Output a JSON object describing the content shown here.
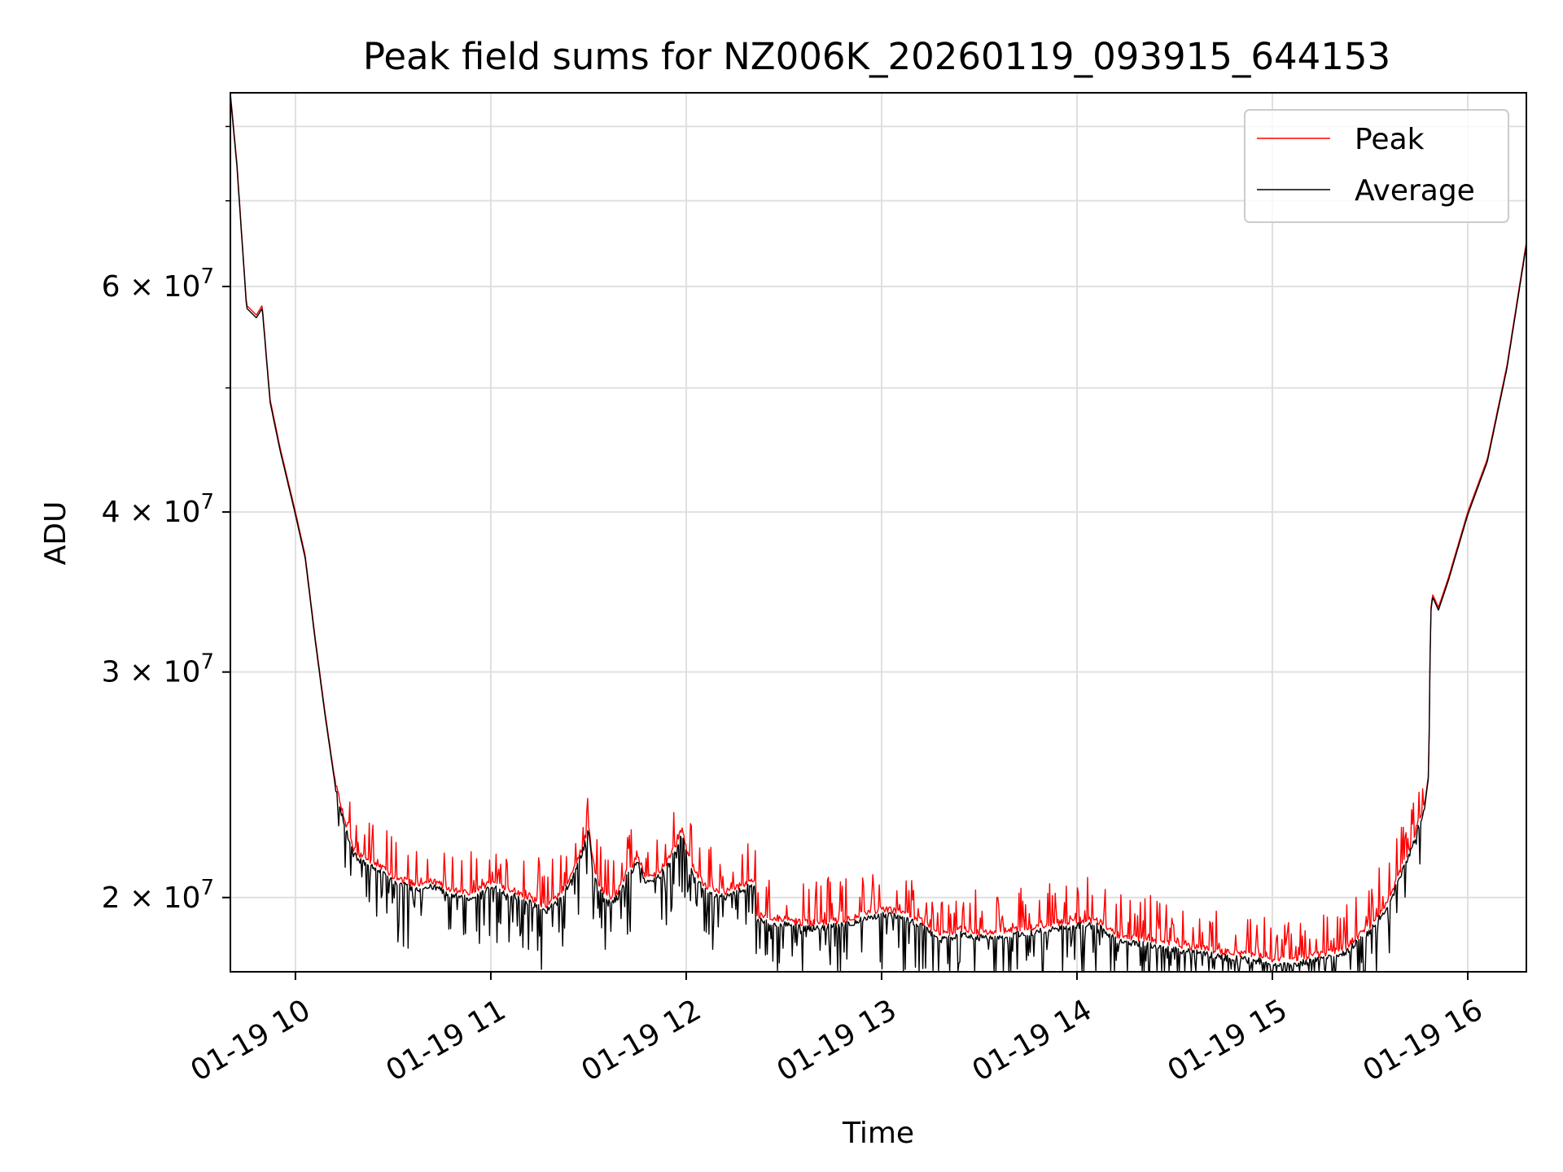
{
  "chart_data": {
    "type": "line",
    "title": "Peak field sums for NZ006K_20260119_093915_644153",
    "xlabel": "Time",
    "ylabel": "ADU",
    "yscale": "log",
    "xlim": [
      9.667,
      16.3
    ],
    "ylim": [
      17500000,
      85000000
    ],
    "grid": true,
    "legend_position": "top-right",
    "x_ticks": [
      {
        "value": 10,
        "label": "01-19 10"
      },
      {
        "value": 11,
        "label": "01-19 11"
      },
      {
        "value": 12,
        "label": "01-19 12"
      },
      {
        "value": 13,
        "label": "01-19 13"
      },
      {
        "value": 14,
        "label": "01-19 14"
      },
      {
        "value": 15,
        "label": "01-19 15"
      },
      {
        "value": 16,
        "label": "01-19 16"
      }
    ],
    "y_ticks": [
      {
        "value": 20000000,
        "mantissa": "2",
        "base": "10",
        "exp": "7"
      },
      {
        "value": 30000000,
        "mantissa": "3",
        "base": "10",
        "exp": "7"
      },
      {
        "value": 40000000,
        "mantissa": "4",
        "base": "10",
        "exp": "7"
      },
      {
        "value": 60000000,
        "mantissa": "6",
        "base": "10",
        "exp": "7"
      }
    ],
    "y_minor_ticks": [
      50000000,
      70000000,
      80000000
    ],
    "series": [
      {
        "name": "Peak",
        "color": "#ff0000"
      },
      {
        "name": "Average",
        "color": "#000000"
      }
    ],
    "trend": {
      "x": [
        9.667,
        9.7,
        9.75,
        9.8,
        9.83,
        9.87,
        9.92,
        10.0,
        10.05,
        10.1,
        10.15,
        10.2,
        10.25,
        10.3,
        10.35,
        10.4,
        10.5,
        10.6,
        10.7,
        10.8,
        10.9,
        11.0,
        11.1,
        11.2,
        11.28,
        11.35,
        11.4,
        11.45,
        11.48,
        11.5,
        11.52,
        11.55,
        11.6,
        11.65,
        11.7,
        11.75,
        11.8,
        11.85,
        11.9,
        11.95,
        11.98,
        12.0,
        12.05,
        12.1,
        12.2,
        12.3,
        12.35,
        12.36,
        12.45,
        12.6,
        12.8,
        13.0,
        13.1,
        13.2,
        13.3,
        13.4,
        13.5,
        13.7,
        13.9,
        14.0,
        14.1,
        14.15,
        14.2,
        14.4,
        14.6,
        14.8,
        14.95,
        15.0,
        15.05,
        15.2,
        15.35,
        15.5,
        15.6,
        15.7,
        15.78,
        15.8,
        15.81,
        15.82,
        15.85,
        15.9,
        16.0,
        16.1,
        16.2,
        16.3
      ],
      "y": [
        85000000,
        75000000,
        58000000,
        57000000,
        58000000,
        49000000,
        45000000,
        40000000,
        37000000,
        32000000,
        28000000,
        24800000,
        23000000,
        21800000,
        21500000,
        21300000,
        20800000,
        20500000,
        20600000,
        20300000,
        20100000,
        20600000,
        20300000,
        20000000,
        19700000,
        20100000,
        20700000,
        21500000,
        22200000,
        22800000,
        21500000,
        20500000,
        20000000,
        20200000,
        21000000,
        21500000,
        20700000,
        20900000,
        21300000,
        22100000,
        22700000,
        21800000,
        20900000,
        20400000,
        20200000,
        20500000,
        20700000,
        19400000,
        19300000,
        19100000,
        19200000,
        19600000,
        19500000,
        19200000,
        18700000,
        18900000,
        18800000,
        18900000,
        19100000,
        19200000,
        19200000,
        19000000,
        18700000,
        18500000,
        18300000,
        18100000,
        18000000,
        17900000,
        17900000,
        18000000,
        18200000,
        19000000,
        20000000,
        21800000,
        23700000,
        25000000,
        33500000,
        34500000,
        33700000,
        35500000,
        40000000,
        44000000,
        52000000,
        65000000
      ]
    },
    "noise": {
      "start": 10.2,
      "end": 15.78,
      "samples": 1400,
      "seed": 12345,
      "peak_spike_pct_max": 8,
      "avg_dip_pct_max": 10
    }
  }
}
